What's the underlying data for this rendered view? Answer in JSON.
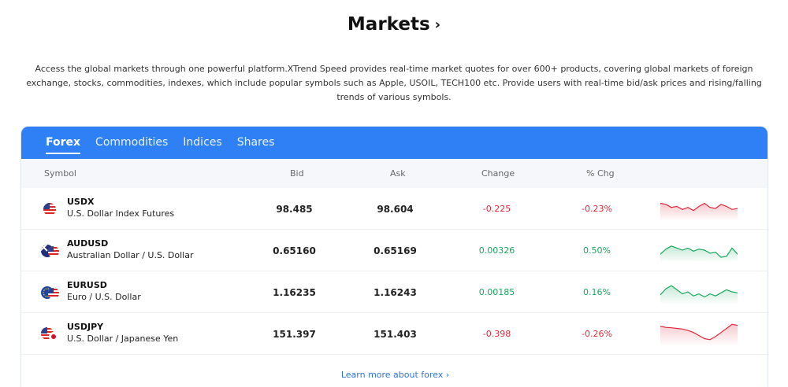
{
  "header": {
    "title": "Markets",
    "chevron": "›"
  },
  "description": "Access the global markets through one powerful platform.XTrend Speed provides real-time market quotes for over 600+ products, covering global markets of foreign exchange, stocks, commodities, indexes, which include popular symbols such as Apple, USOIL, TECH100 etc. Provide users with real-time bid/ask prices and rising/falling trends of various symbols.",
  "tabs": [
    {
      "label": "Forex",
      "active": true
    },
    {
      "label": "Commodities",
      "active": false
    },
    {
      "label": "Indices",
      "active": false
    },
    {
      "label": "Shares",
      "active": false
    }
  ],
  "columns": {
    "symbol": "Symbol",
    "bid": "Bid",
    "ask": "Ask",
    "change": "Change",
    "pct": "% Chg"
  },
  "rows": [
    {
      "symbol": "USDX",
      "name": "U.S. Dollar Index Futures",
      "bid": "98.485",
      "ask": "98.604",
      "change": "-0.225",
      "pct": "-0.23%",
      "trend": "down",
      "flag": "us-flag-icon",
      "spark": [
        0.75,
        0.7,
        0.55,
        0.6,
        0.45,
        0.55,
        0.4,
        0.6,
        0.75,
        0.55,
        0.5,
        0.7,
        0.6,
        0.45,
        0.5
      ]
    },
    {
      "symbol": "AUDUSD",
      "name": "Australian Dollar / U.S. Dollar",
      "bid": "0.65160",
      "ask": "0.65169",
      "change": "0.00326",
      "pct": "0.50%",
      "trend": "up",
      "flag": "au-us-flag-icon",
      "spark": [
        0.3,
        0.55,
        0.7,
        0.6,
        0.5,
        0.6,
        0.45,
        0.55,
        0.5,
        0.35,
        0.4,
        0.15,
        0.2,
        0.6,
        0.3
      ]
    },
    {
      "symbol": "EURUSD",
      "name": "Euro / U.S. Dollar",
      "bid": "1.16235",
      "ask": "1.16243",
      "change": "0.00185",
      "pct": "0.16%",
      "trend": "up",
      "flag": "eu-us-flag-icon",
      "spark": [
        0.35,
        0.65,
        0.8,
        0.6,
        0.4,
        0.5,
        0.3,
        0.4,
        0.25,
        0.4,
        0.3,
        0.45,
        0.6,
        0.5,
        0.45
      ]
    },
    {
      "symbol": "USDJPY",
      "name": "U.S. Dollar / Japanese Yen",
      "bid": "151.397",
      "ask": "151.403",
      "change": "-0.398",
      "pct": "-0.26%",
      "trend": "down",
      "flag": "us-jp-flag-icon",
      "spark": [
        0.85,
        0.8,
        0.78,
        0.75,
        0.72,
        0.65,
        0.55,
        0.4,
        0.25,
        0.2,
        0.35,
        0.55,
        0.75,
        0.95,
        0.9
      ]
    }
  ],
  "colors": {
    "accent": "#2f80f5",
    "up": "#17a85c",
    "down": "#e0283a",
    "link": "#2f73d8"
  },
  "footer_link": "Learn more about forex  ›"
}
